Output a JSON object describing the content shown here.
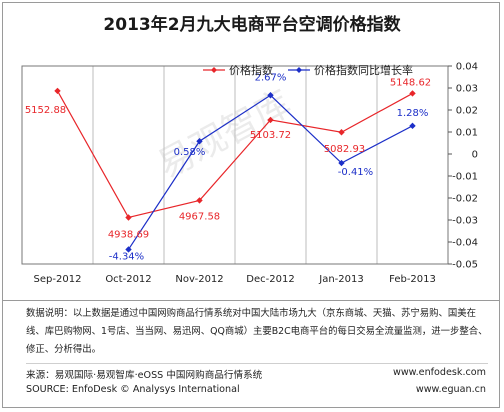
{
  "title": "2013年2月九大电商平台空调价格指数",
  "watermark": "易观智库",
  "chart_data": {
    "type": "line",
    "categories": [
      "Sep-2012",
      "Oct-2012",
      "Nov-2012",
      "Dec-2012",
      "Jan-2013",
      "Feb-2013"
    ],
    "series": [
      {
        "name": "价格指数",
        "axis": "left",
        "color": "#e8262a",
        "values": [
          5152.88,
          4938.69,
          4967.58,
          5103.72,
          5082.93,
          5148.62
        ],
        "labels": [
          null,
          "4938.69",
          "4967.58",
          "5103.72",
          "5082.93",
          "5148.62"
        ],
        "first_label": "5152.88"
      },
      {
        "name": "价格指数同比增长率",
        "axis": "right",
        "color": "#1c2fc8",
        "values": [
          null,
          -4.34,
          0.58,
          2.67,
          -0.41,
          1.28
        ],
        "labels": [
          null,
          "-4.34%",
          "0.58%",
          "2.67%",
          "-0.41%",
          "1.28%"
        ]
      }
    ],
    "left_axis": {
      "min": 4860,
      "max": 5195
    },
    "right_axis": {
      "min": -0.05,
      "max": 0.04,
      "ticks": [
        0.04,
        0.03,
        0.02,
        0.01,
        0,
        -0.01,
        -0.02,
        -0.03,
        -0.04,
        -0.05
      ],
      "tick_labels": [
        "0.04",
        "0.03",
        "0.02",
        "0.01",
        "0",
        "-0.01",
        "-0.02",
        "-0.03",
        "-0.04",
        "-0.05"
      ]
    },
    "legend_position": "top-right",
    "grid": "vertical"
  },
  "note": "数据说明：以上数据是通过中国网购商品行情系统对中国大陆市场九大（京东商城、天猫、苏宁易购、国美在线、库巴购物网、1号店、当当网、易迅网、QQ商城）主要B2C电商平台的每日交易全流量监测，进一步整合、修正、分析得出。",
  "footer": {
    "source_cn": "来源：易观国际·易观智库·eOSS 中国网购商品行情系统",
    "source_en": "SOURCE: EnfoDesk © Analysys International",
    "url1": "www.enfodesk.com",
    "url2": "www.eguan.cn"
  }
}
